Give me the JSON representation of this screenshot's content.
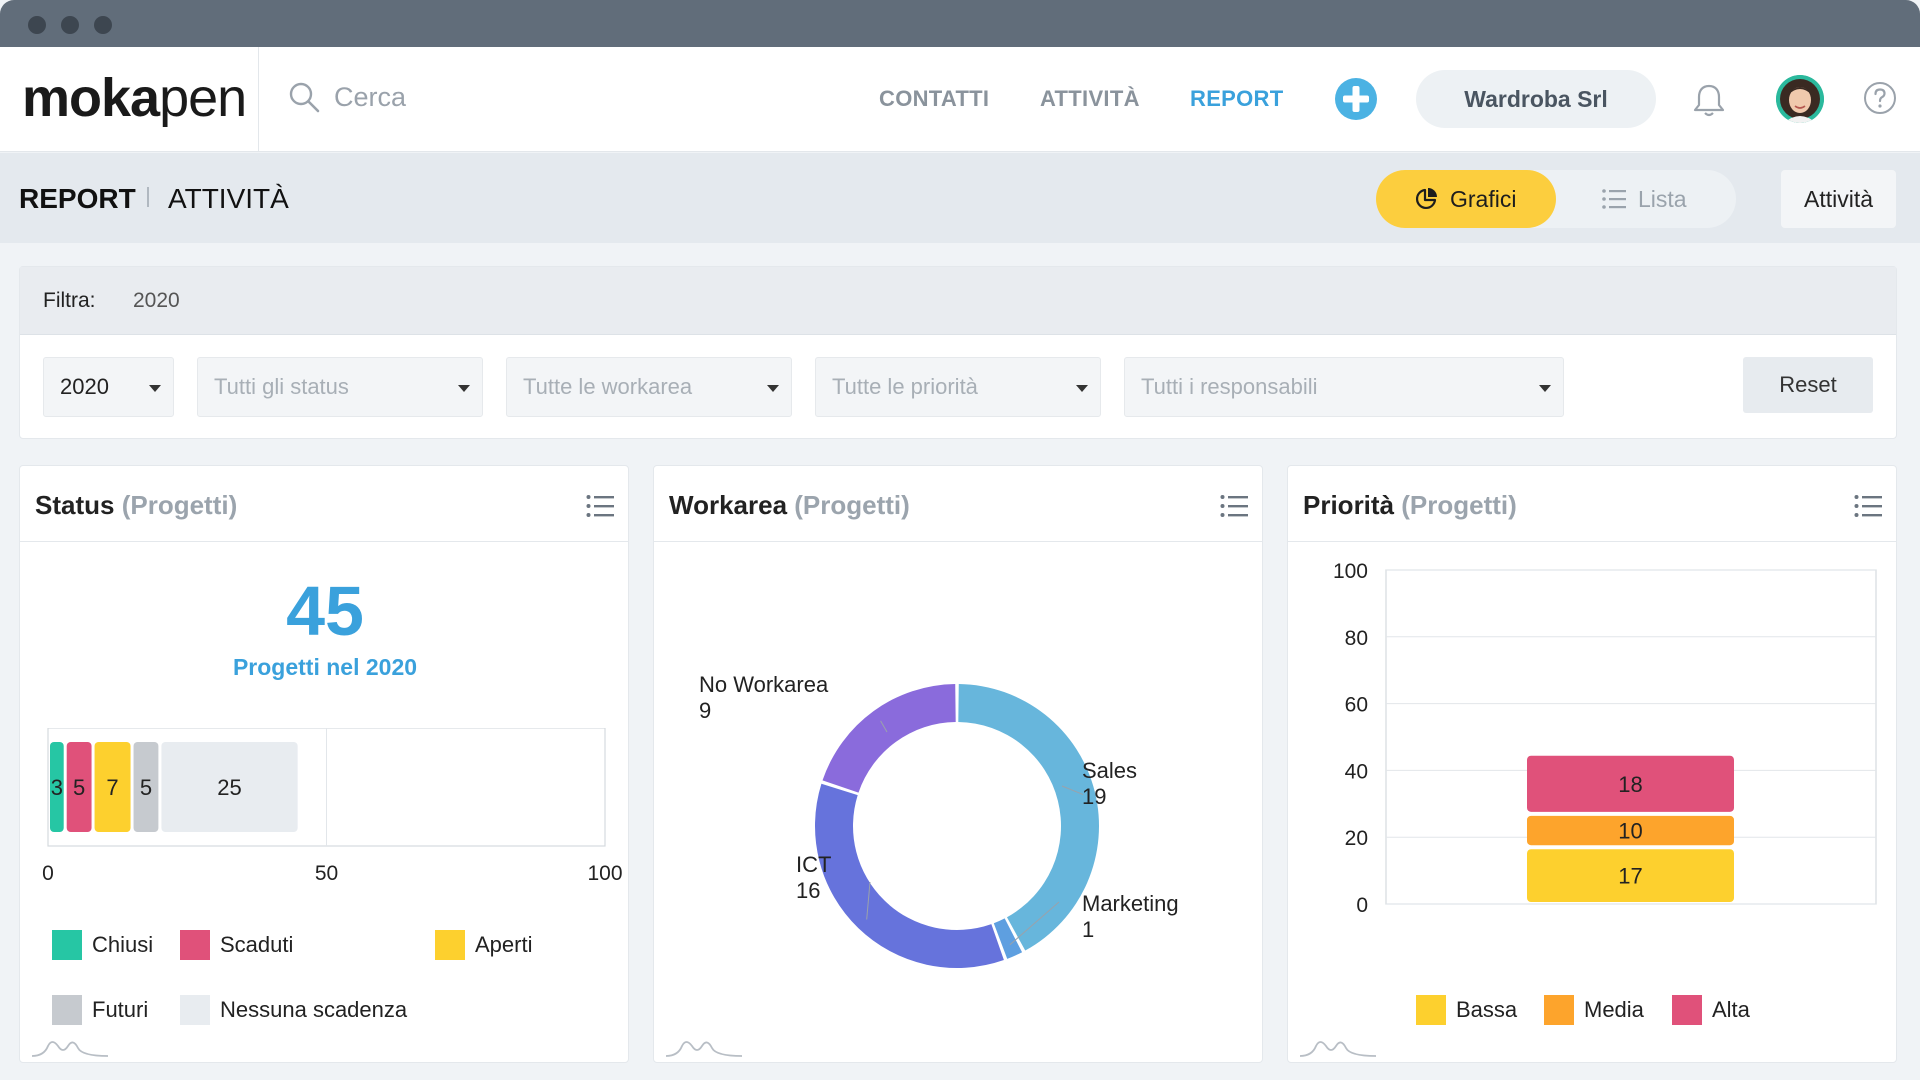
{
  "app": {
    "logo_bold": "moka",
    "logo_light": "pen"
  },
  "search": {
    "placeholder": "Cerca"
  },
  "nav": {
    "items": [
      {
        "label": "CONTATTI",
        "active": false
      },
      {
        "label": "ATTIVITÀ",
        "active": false
      },
      {
        "label": "REPORT",
        "active": true
      }
    ],
    "company": "Wardroba Srl",
    "icons": [
      "search-icon",
      "add-icon",
      "bell-icon",
      "avatar",
      "help-icon"
    ]
  },
  "subheader": {
    "crumb_main": "REPORT",
    "crumb_sub": "ATTIVITÀ",
    "view_tabs": [
      {
        "label": "Grafici",
        "active": true,
        "icon": "pie-chart-icon"
      },
      {
        "label": "Lista",
        "active": false,
        "icon": "list-icon"
      }
    ],
    "action_label": "Attività"
  },
  "filter": {
    "label": "Filtra:",
    "value": "2020",
    "selects": [
      {
        "value": "2020",
        "placeholder": ""
      },
      {
        "value": "",
        "placeholder": "Tutti gli status"
      },
      {
        "value": "",
        "placeholder": "Tutte le workarea"
      },
      {
        "value": "",
        "placeholder": "Tutte le priorità"
      },
      {
        "value": "",
        "placeholder": "Tutti i responsabili"
      }
    ],
    "reset_label": "Reset"
  },
  "panels": {
    "status": {
      "title": "Status",
      "subtitle": "(Progetti)",
      "total": "45",
      "total_label": "Progetti nel 2020"
    },
    "workarea": {
      "title": "Workarea",
      "subtitle": "(Progetti)"
    },
    "priorita": {
      "title": "Priorità",
      "subtitle": "(Progetti)"
    }
  },
  "colors": {
    "accent": "#3aa1dc",
    "chiusi": "#26c6a4",
    "scaduti": "#e0517a",
    "aperti": "#fdd02e",
    "futuri": "#c6cacf",
    "nessuna": "#e8ecf0",
    "sales": "#67b6dc",
    "marketing": "#5e9fe0",
    "ict": "#6673dc",
    "noworkarea": "#8a6bdc",
    "bassa": "#fdd02e",
    "media": "#fda42c",
    "alta": "#e0517a"
  },
  "chart_data": [
    {
      "type": "bar",
      "orientation": "horizontal-stacked",
      "series": [
        {
          "name": "Chiusi",
          "values": [
            3
          ]
        },
        {
          "name": "Scaduti",
          "values": [
            5
          ]
        },
        {
          "name": "Aperti",
          "values": [
            7
          ]
        },
        {
          "name": "Futuri",
          "values": [
            5
          ]
        },
        {
          "name": "Nessuna scadenza",
          "values": [
            25
          ]
        }
      ],
      "xlim": [
        0,
        100
      ],
      "xticks": [
        "0",
        "50",
        "100"
      ],
      "legend": "bottom"
    },
    {
      "type": "pie",
      "donut": true,
      "slices": [
        {
          "name": "Sales",
          "value": 19
        },
        {
          "name": "Marketing",
          "value": 1
        },
        {
          "name": "ICT",
          "value": 16
        },
        {
          "name": "No Workarea",
          "value": 9
        }
      ]
    },
    {
      "type": "bar",
      "orientation": "vertical-stacked",
      "series": [
        {
          "name": "Bassa",
          "values": [
            17
          ]
        },
        {
          "name": "Media",
          "values": [
            10
          ]
        },
        {
          "name": "Alta",
          "values": [
            18
          ]
        }
      ],
      "ylim": [
        0,
        100
      ],
      "yticks": [
        "0",
        "20",
        "40",
        "60",
        "80",
        "100"
      ],
      "grid": true,
      "legend": "bottom"
    }
  ]
}
